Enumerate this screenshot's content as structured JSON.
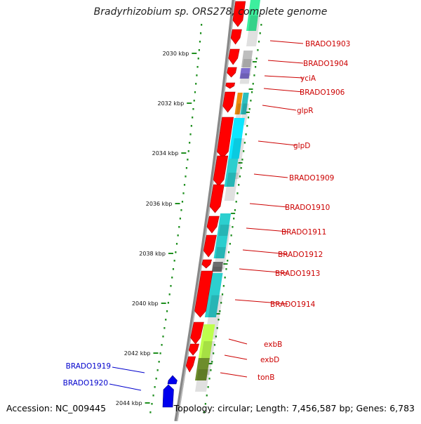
{
  "title": "Bradyrhizobium sp. ORS278, complete genome",
  "footer": {
    "accession": "Accession: NC_009445",
    "summary": "Topology: circular; Length: 7,456,587 bp; Genes: 6,783"
  },
  "colors": {
    "forward_gene": "#ff0000",
    "reverse_gene": "#0000ee",
    "backbone": "#808080",
    "ticks": "#1f8f1f",
    "label_red": "#cc0000",
    "label_blue": "#0000cc"
  },
  "scale_labels": [
    "2030 kbp",
    "2032 kbp",
    "2034 kbp",
    "2036 kbp",
    "2038 kbp",
    "2040 kbp",
    "2042 kbp",
    "2044 kbp"
  ],
  "gene_labels_right": [
    "BRADO1903",
    "BRADO1904",
    "yciA",
    "BRADO1906",
    "glpR",
    "glpD",
    "BRADO1909",
    "BRADO1910",
    "BRADO1911",
    "BRADO1912",
    "BRADO1913",
    "BRADO1914",
    "exbB",
    "exbD",
    "tonB"
  ],
  "gene_labels_left": [
    "BRADO1919",
    "BRADO1920"
  ],
  "cog_colors": [
    "#33ee99",
    "#bbbbbb",
    "#7766cc",
    "#ee8800",
    "#22bbbb",
    "#00e5ff",
    "#22cccc",
    "#22cccc",
    "#22cccc",
    "#666666",
    "#22cccc",
    "#bbff44",
    "#668822"
  ]
}
